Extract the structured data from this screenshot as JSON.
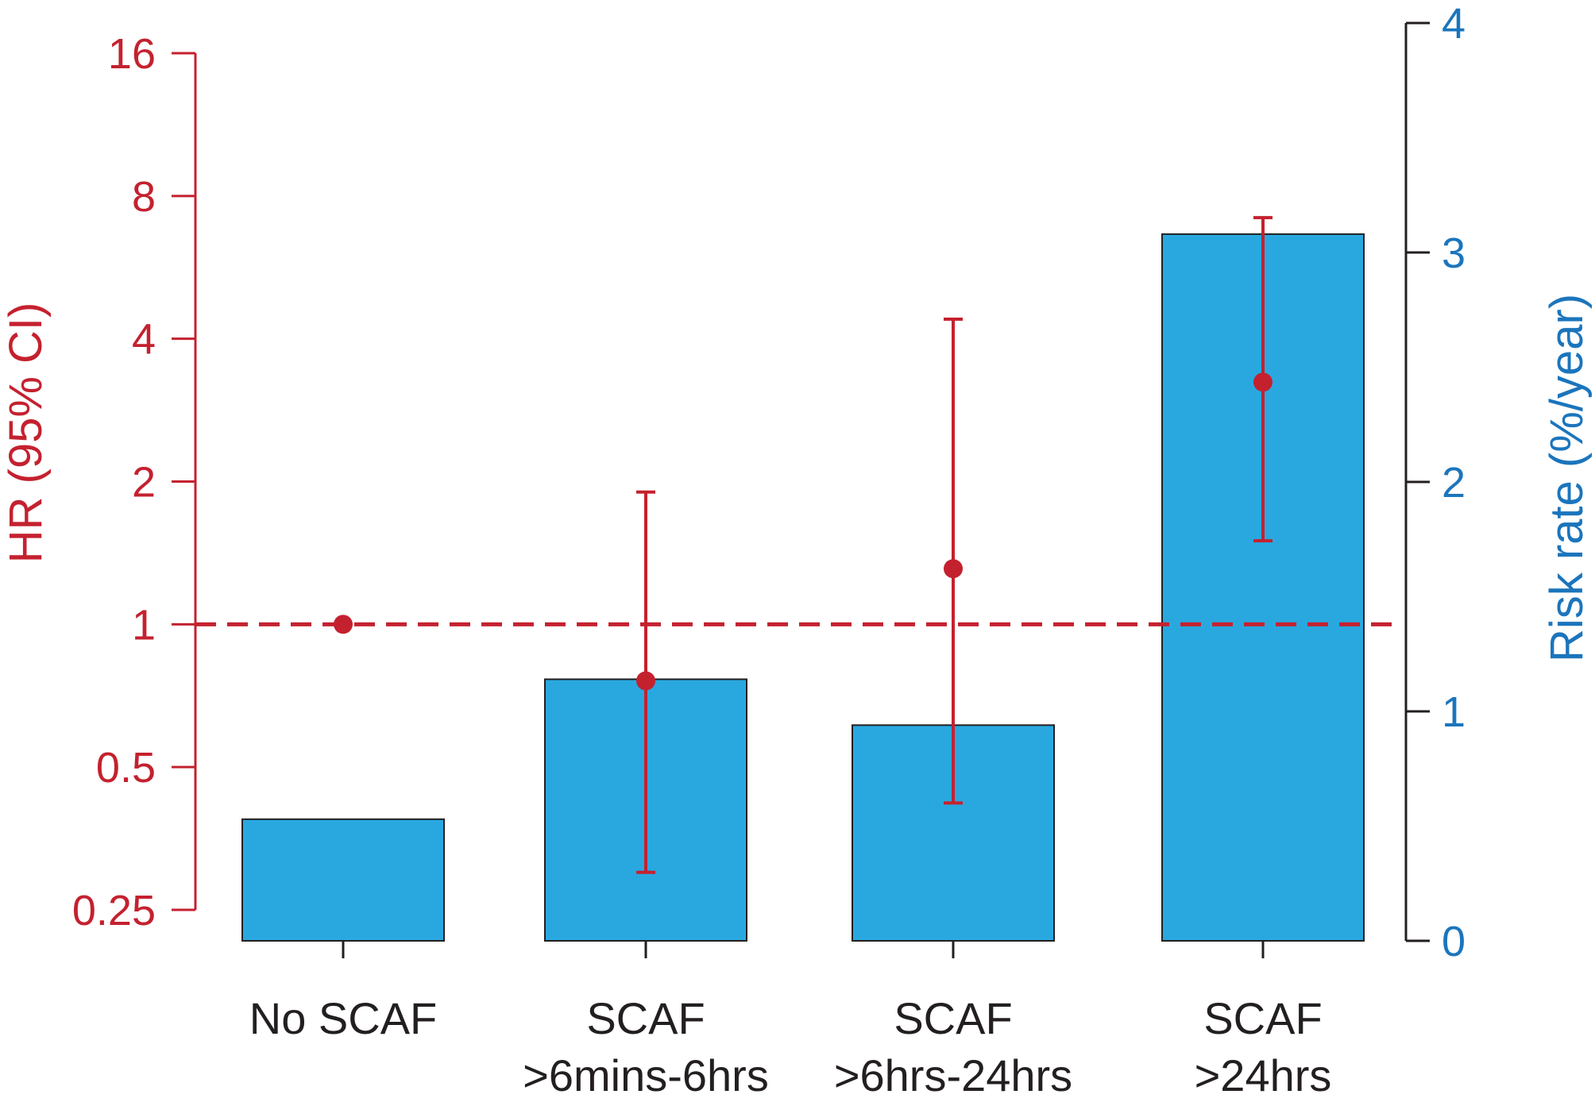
{
  "chart_data": {
    "type": "bar",
    "title": "",
    "categories": [
      [
        "No SCAF"
      ],
      [
        "SCAF",
        ">6mins-6hrs"
      ],
      [
        "SCAF",
        ">6hrs-24hrs"
      ],
      [
        "SCAF",
        ">24hrs"
      ]
    ],
    "left_axis": {
      "label": "HR (95% CI)",
      "scale": "log2",
      "range": [
        0.25,
        16
      ],
      "ticks": [
        0.25,
        0.5,
        1,
        2,
        4,
        8,
        16
      ],
      "tick_labels": [
        "0.25",
        "0.5",
        "1",
        "2",
        "4",
        "8",
        "16"
      ],
      "color": "#c4212f"
    },
    "right_axis": {
      "label": "Risk rate (%/year)",
      "range": [
        0,
        4
      ],
      "ticks": [
        0,
        1,
        2,
        3,
        4
      ],
      "tick_labels": [
        "0",
        "1",
        "2",
        "3",
        "4"
      ],
      "color": "#1b75bc"
    },
    "bars": {
      "axis": "right",
      "color": "#29a8e0",
      "values": [
        0.53,
        1.14,
        0.94,
        3.08
      ]
    },
    "hazard_ratios": {
      "axis": "left",
      "color": "#c4212f",
      "points": [
        {
          "hr": 1.0,
          "lower": null,
          "upper": null
        },
        {
          "hr": 0.76,
          "lower": 0.3,
          "upper": 1.9
        },
        {
          "hr": 1.31,
          "lower": 0.42,
          "upper": 4.4
        },
        {
          "hr": 3.24,
          "lower": 1.5,
          "upper": 7.2
        }
      ]
    },
    "reference_line": {
      "axis": "left",
      "value": 1,
      "style": "dashed",
      "color": "#c4212f"
    }
  }
}
